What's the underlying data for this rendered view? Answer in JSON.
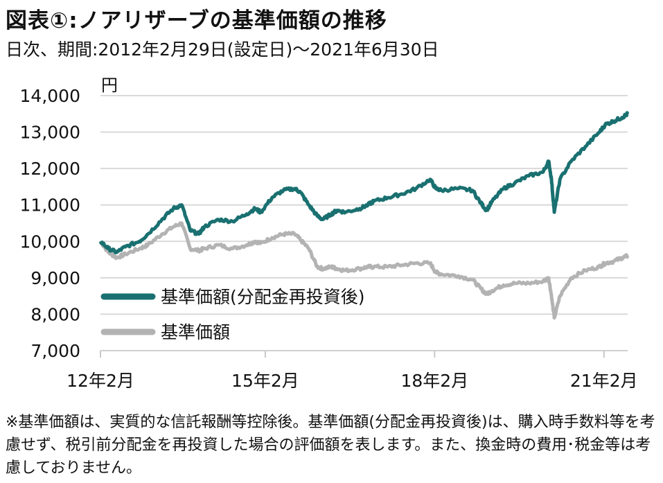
{
  "header": {
    "title": "図表①:ノアリザーブの基準価額の推移",
    "subtitle": "日次、期間:2012年2月29日(設定日)～2021年6月30日"
  },
  "colors": {
    "series1": "#1a7070",
    "series2": "#b3b3b3",
    "grid": "#d9d9d9"
  },
  "chart_data": {
    "type": "line",
    "unit_label": "円",
    "ylim": [
      7000,
      14000
    ],
    "yticks": [
      7000,
      8000,
      9000,
      10000,
      11000,
      12000,
      13000,
      14000
    ],
    "ytick_labels": [
      "7,000",
      "8,000",
      "9,000",
      "10,000",
      "11,000",
      "12,000",
      "13,000",
      "14,000"
    ],
    "xlim": [
      2012.16,
      2021.5
    ],
    "xticks": [
      2012.08,
      2015.08,
      2018.08,
      2021.08
    ],
    "xtick_labels": [
      "12年2月",
      "15年2月",
      "18年2月",
      "21年2月"
    ],
    "grid": true,
    "legend": "bottom-left inside plot",
    "series": [
      {
        "name": "基準価額(分配金再投資後)",
        "x": [
          2012.16,
          2012.3,
          2012.45,
          2012.6,
          2012.85,
          2013.0,
          2013.25,
          2013.45,
          2013.6,
          2013.75,
          2013.9,
          2014.0,
          2014.25,
          2014.5,
          2014.75,
          2014.9,
          2015.0,
          2015.2,
          2015.4,
          2015.6,
          2015.7,
          2015.85,
          2016.0,
          2016.1,
          2016.25,
          2016.35,
          2016.5,
          2016.75,
          2016.9,
          2017.0,
          2017.25,
          2017.5,
          2017.75,
          2018.0,
          2018.1,
          2018.2,
          2018.5,
          2018.75,
          2018.9,
          2019.0,
          2019.1,
          2019.3,
          2019.5,
          2019.75,
          2020.0,
          2020.1,
          2020.15,
          2020.2,
          2020.3,
          2020.5,
          2020.75,
          2021.0,
          2021.1,
          2021.25,
          2021.4,
          2021.5
        ],
        "values": [
          10000,
          9800,
          9700,
          9850,
          10000,
          10200,
          10600,
          10900,
          11000,
          10300,
          10200,
          10400,
          10600,
          10550,
          10750,
          10900,
          10800,
          11200,
          11400,
          11450,
          11350,
          11000,
          10700,
          10600,
          10750,
          10850,
          10800,
          10900,
          11000,
          11100,
          11200,
          11300,
          11450,
          11700,
          11450,
          11400,
          11450,
          11400,
          11050,
          10850,
          11100,
          11450,
          11600,
          11800,
          11900,
          12200,
          11700,
          10800,
          11700,
          12200,
          12600,
          13000,
          13200,
          13300,
          13400,
          13500
        ]
      },
      {
        "name": "基準価額",
        "x": [
          2012.16,
          2012.3,
          2012.45,
          2012.6,
          2012.85,
          2013.0,
          2013.25,
          2013.45,
          2013.6,
          2013.75,
          2013.9,
          2014.0,
          2014.25,
          2014.5,
          2014.75,
          2014.9,
          2015.0,
          2015.2,
          2015.4,
          2015.6,
          2015.7,
          2015.85,
          2016.0,
          2016.1,
          2016.25,
          2016.35,
          2016.5,
          2016.75,
          2016.9,
          2017.0,
          2017.25,
          2017.5,
          2017.75,
          2018.0,
          2018.1,
          2018.2,
          2018.5,
          2018.75,
          2018.9,
          2019.0,
          2019.1,
          2019.3,
          2019.5,
          2019.75,
          2020.0,
          2020.1,
          2020.15,
          2020.2,
          2020.3,
          2020.5,
          2020.75,
          2021.0,
          2021.1,
          2021.25,
          2021.4,
          2021.5
        ],
        "values": [
          10000,
          9700,
          9550,
          9650,
          9800,
          9900,
          10200,
          10400,
          10500,
          9800,
          9750,
          9800,
          9900,
          9800,
          9900,
          10000,
          9950,
          10100,
          10200,
          10200,
          10050,
          9800,
          9300,
          9250,
          9300,
          9250,
          9200,
          9250,
          9300,
          9300,
          9300,
          9350,
          9400,
          9400,
          9150,
          9100,
          9050,
          8950,
          8700,
          8550,
          8650,
          8800,
          8850,
          8850,
          8900,
          9000,
          8500,
          7900,
          8500,
          9000,
          9200,
          9300,
          9400,
          9450,
          9550,
          9600
        ]
      }
    ]
  },
  "footnote": "※基準価額は、実質的な信託報酬等控除後。基準価額(分配金再投資後)は、購入時手数料等を考慮せず、税引前分配金を再投資した場合の評価額を表します。また、換金時の費用･税金等は考慮しておりません。"
}
